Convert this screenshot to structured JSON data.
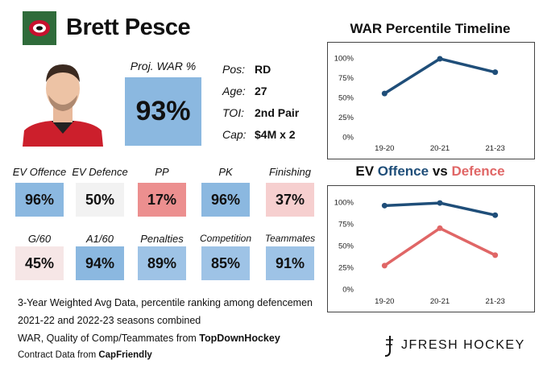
{
  "header": {
    "player_name": "Brett Pesce",
    "team_logo_icon": "hurricanes-logo-icon"
  },
  "projection": {
    "label": "Proj. WAR %",
    "value": "93%",
    "color": "#8bb8e0"
  },
  "info": [
    {
      "label": "Pos:",
      "value": "RD"
    },
    {
      "label": "Age:",
      "value": "27"
    },
    {
      "label": "TOI:",
      "value": "2nd Pair"
    },
    {
      "label": "Cap:",
      "value": "$4M x 2"
    }
  ],
  "stats": [
    {
      "label": "EV Offence",
      "value": "96%",
      "color": "#8bb8e0"
    },
    {
      "label": "EV Defence",
      "value": "50%",
      "color": "#f2f2f2"
    },
    {
      "label": "PP",
      "value": "17%",
      "color": "#ec8f8f"
    },
    {
      "label": "PK",
      "value": "96%",
      "color": "#8bb8e0"
    },
    {
      "label": "Finishing",
      "value": "37%",
      "color": "#f6cfcf"
    },
    {
      "label": "G/60",
      "value": "45%",
      "color": "#f6e6e6"
    },
    {
      "label": "A1/60",
      "value": "94%",
      "color": "#8bb8e0"
    },
    {
      "label": "Penalties",
      "value": "89%",
      "color": "#9ec3e6"
    },
    {
      "label": "Competition",
      "value": "85%",
      "color": "#9ec3e6"
    },
    {
      "label": "Teammates",
      "value": "91%",
      "color": "#9ec3e6"
    }
  ],
  "notes": {
    "line1": "3-Year Weighted Avg Data, percentile ranking among defencemen",
    "line2": "2021-22 and 2022-23 seasons combined",
    "line3_prefix": "WAR, Quality of Comp/Teammates from ",
    "line3_source": "TopDownHockey",
    "line4_prefix": "Contract Data from ",
    "line4_source": "CapFriendly"
  },
  "brand": "JFRESH HOCKEY",
  "chart_data": [
    {
      "type": "line",
      "title": "WAR Percentile Timeline",
      "categories": [
        "19-20",
        "20-21",
        "21-23"
      ],
      "series": [
        {
          "name": "WAR",
          "values": [
            55,
            99,
            82
          ],
          "color": "#1f4e79"
        }
      ],
      "yticks": [
        "100%",
        "75%",
        "50%",
        "25%",
        "0%"
      ],
      "ylim": [
        0,
        100
      ]
    },
    {
      "type": "line",
      "title_parts": {
        "lead": "EV ",
        "offence": "Offence",
        "mid": " vs ",
        "defence": "Defence"
      },
      "categories": [
        "19-20",
        "20-21",
        "21-23"
      ],
      "series": [
        {
          "name": "Offence",
          "values": [
            96,
            99,
            85
          ],
          "color": "#1f4e79"
        },
        {
          "name": "Defence",
          "values": [
            27,
            70,
            39
          ],
          "color": "#e06666"
        }
      ],
      "yticks": [
        "100%",
        "75%",
        "50%",
        "25%",
        "0%"
      ],
      "ylim": [
        0,
        100
      ]
    }
  ]
}
